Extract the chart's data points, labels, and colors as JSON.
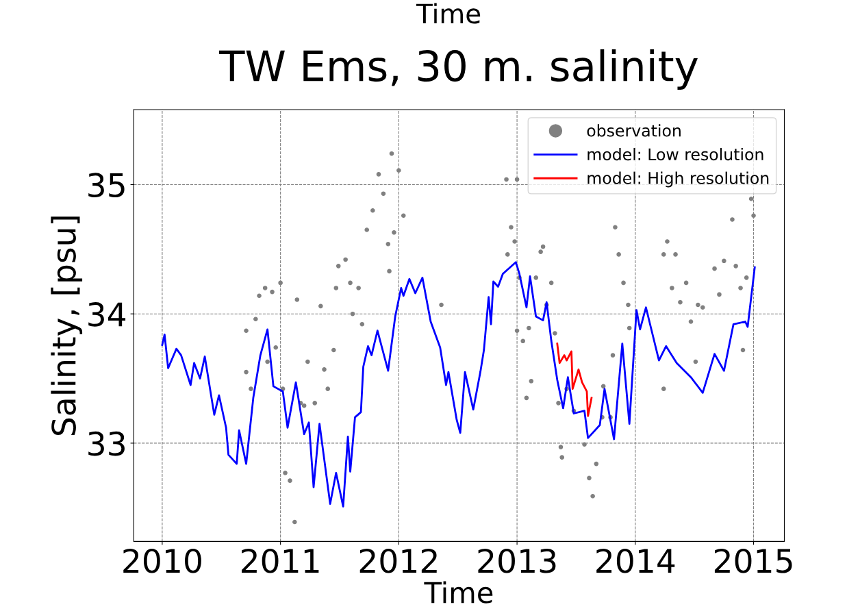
{
  "chart_data": {
    "type": "line",
    "title": "TW Ems, 30 m. salinity",
    "xlabel": "Time",
    "ylabel": "Salinity, [psu]",
    "annotations": [
      "Time"
    ],
    "xlim": [
      2009.76,
      2015.26
    ],
    "xticks": [
      2010,
      2011,
      2012,
      2013,
      2014,
      2015
    ],
    "ylim": [
      32.24,
      35.58
    ],
    "yticks": [
      33,
      34,
      35
    ],
    "grid": true,
    "legend": "top right",
    "series": [
      {
        "name": "observation",
        "type": "scatter",
        "marker": "circle",
        "color": "#808080",
        "x": [
          2010.71,
          2010.71,
          2010.75,
          2010.79,
          2010.82,
          2010.87,
          2010.89,
          2010.93,
          2010.96,
          2011.0,
          2011.02,
          2011.04,
          2011.08,
          2011.12,
          2011.14,
          2011.17,
          2011.2,
          2011.23,
          2011.29,
          2011.34,
          2011.37,
          2011.4,
          2011.45,
          2011.47,
          2011.49,
          2011.55,
          2011.59,
          2011.61,
          2011.66,
          2011.69,
          2011.73,
          2011.78,
          2011.83,
          2011.87,
          2011.91,
          2011.92,
          2011.94,
          2011.96,
          2012.0,
          2012.04,
          2012.36,
          2012.91,
          2012.92,
          2012.95,
          2012.98,
          2013.0,
          2013.02,
          2013.0,
          2013.05,
          2013.08,
          2013.1,
          2013.12,
          2013.16,
          2013.2,
          2013.22,
          2013.25,
          2013.29,
          2013.32,
          2013.35,
          2013.37,
          2013.38,
          2013.42,
          2013.48,
          2013.57,
          2013.61,
          2013.64,
          2013.67,
          2013.72,
          2013.73,
          2013.79,
          2013.81,
          2013.83,
          2013.86,
          2013.9,
          2013.94,
          2013.95,
          2014.24,
          2014.24,
          2014.27,
          2014.31,
          2014.34,
          2014.38,
          2014.43,
          2014.47,
          2014.51,
          2014.53,
          2014.57,
          2014.67,
          2014.71,
          2014.75,
          2014.82,
          2014.85,
          2014.89,
          2014.91,
          2014.94,
          2014.95,
          2014.98,
          2015.0
        ],
        "values": [
          33.87,
          33.55,
          33.42,
          33.96,
          34.14,
          34.2,
          33.63,
          34.17,
          33.74,
          34.24,
          33.42,
          32.77,
          32.71,
          32.39,
          34.11,
          33.31,
          33.29,
          33.63,
          33.31,
          34.06,
          33.57,
          33.42,
          33.72,
          34.2,
          34.37,
          34.42,
          34.24,
          34.0,
          34.2,
          33.92,
          34.65,
          34.8,
          35.08,
          34.93,
          34.54,
          34.33,
          35.24,
          34.63,
          35.11,
          34.76,
          34.07,
          35.04,
          34.46,
          34.67,
          34.56,
          35.04,
          34.28,
          33.87,
          33.79,
          33.35,
          33.89,
          33.48,
          34.28,
          34.48,
          34.52,
          34.07,
          34.24,
          33.85,
          33.31,
          32.97,
          32.89,
          33.42,
          33.25,
          32.99,
          32.73,
          32.59,
          32.84,
          33.2,
          33.44,
          33.2,
          33.68,
          34.67,
          34.46,
          34.24,
          34.07,
          33.89,
          33.42,
          34.46,
          34.56,
          34.2,
          34.46,
          34.09,
          34.24,
          33.94,
          33.63,
          34.07,
          34.05,
          34.35,
          34.15,
          34.41,
          34.73,
          34.37,
          34.2,
          33.72,
          34.28,
          35.06,
          34.89,
          34.76
        ]
      },
      {
        "name": "model: Low resolution",
        "line_style": "solid",
        "color": "#0000ff",
        "x": [
          2010.0,
          2010.02,
          2010.05,
          2010.12,
          2010.16,
          2010.24,
          2010.27,
          2010.32,
          2010.36,
          2010.44,
          2010.48,
          2010.54,
          2010.56,
          2010.63,
          2010.65,
          2010.71,
          2010.77,
          2010.83,
          2010.89,
          2010.94,
          2011.02,
          2011.06,
          2011.13,
          2011.2,
          2011.24,
          2011.28,
          2011.33,
          2011.42,
          2011.47,
          2011.53,
          2011.57,
          2011.59,
          2011.63,
          2011.68,
          2011.7,
          2011.74,
          2011.77,
          2011.82,
          2011.91,
          2011.97,
          2012.02,
          2012.04,
          2012.09,
          2012.14,
          2012.2,
          2012.27,
          2012.35,
          2012.4,
          2012.42,
          2012.49,
          2012.52,
          2012.56,
          2012.63,
          2012.69,
          2012.72,
          2012.76,
          2012.78,
          2012.8,
          2012.84,
          2012.88,
          2012.99,
          2013.02,
          2013.08,
          2013.11,
          2013.16,
          2013.22,
          2013.25,
          2013.29,
          2013.34,
          2013.39,
          2013.43,
          2013.48,
          2013.57,
          2013.6,
          2013.7,
          2013.74,
          2013.82,
          2013.89,
          2013.95,
          2014.01,
          2014.04,
          2014.09,
          2014.2,
          2014.26,
          2014.35,
          2014.47,
          2014.57,
          2014.67,
          2014.75,
          2014.83,
          2014.93,
          2014.95,
          2015.01
        ],
        "values": [
          33.76,
          33.84,
          33.58,
          33.73,
          33.68,
          33.45,
          33.62,
          33.5,
          33.67,
          33.22,
          33.37,
          33.12,
          32.91,
          32.84,
          33.1,
          32.84,
          33.35,
          33.68,
          33.88,
          33.44,
          33.4,
          33.12,
          33.47,
          33.07,
          33.16,
          32.66,
          33.15,
          32.53,
          32.77,
          32.51,
          33.05,
          32.78,
          33.2,
          33.24,
          33.59,
          33.75,
          33.68,
          33.87,
          33.56,
          33.98,
          34.2,
          34.14,
          34.27,
          34.16,
          34.28,
          33.94,
          33.74,
          33.45,
          33.55,
          33.18,
          33.08,
          33.55,
          33.26,
          33.55,
          33.72,
          34.13,
          33.92,
          34.25,
          34.21,
          34.31,
          34.4,
          34.31,
          34.05,
          34.29,
          33.98,
          33.95,
          34.09,
          33.79,
          33.49,
          33.27,
          33.51,
          33.23,
          33.25,
          33.04,
          33.14,
          33.42,
          33.03,
          33.77,
          33.15,
          34.03,
          33.88,
          34.05,
          33.64,
          33.75,
          33.62,
          33.51,
          33.39,
          33.69,
          33.56,
          33.92,
          33.94,
          33.9,
          34.36
        ]
      },
      {
        "name": "model: High resolution",
        "line_style": "solid",
        "color": "#ff0000",
        "x": [
          2013.34,
          2013.36,
          2013.4,
          2013.42,
          2013.46,
          2013.47,
          2013.52,
          2013.55,
          2013.59,
          2013.6,
          2013.63
        ],
        "values": [
          33.77,
          33.62,
          33.68,
          33.64,
          33.71,
          33.42,
          33.57,
          33.47,
          33.4,
          33.21,
          33.35
        ]
      }
    ]
  }
}
